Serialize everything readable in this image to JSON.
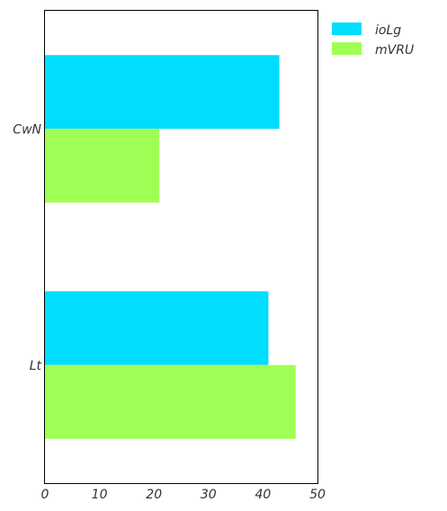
{
  "chart_data": {
    "type": "bar",
    "orientation": "horizontal",
    "categories": [
      "CwN",
      "Lt"
    ],
    "series": [
      {
        "name": "ioLg",
        "color": "#00DDFF",
        "values": [
          43,
          41
        ]
      },
      {
        "name": "mVRU",
        "color": "#A0FF55",
        "values": [
          21,
          46
        ]
      }
    ],
    "xlim": [
      0,
      50
    ],
    "xticks": [
      0,
      10,
      20,
      30,
      40,
      50
    ],
    "title": "",
    "xlabel": "",
    "ylabel": "",
    "grid": false,
    "legend_position": "top-right outside"
  }
}
